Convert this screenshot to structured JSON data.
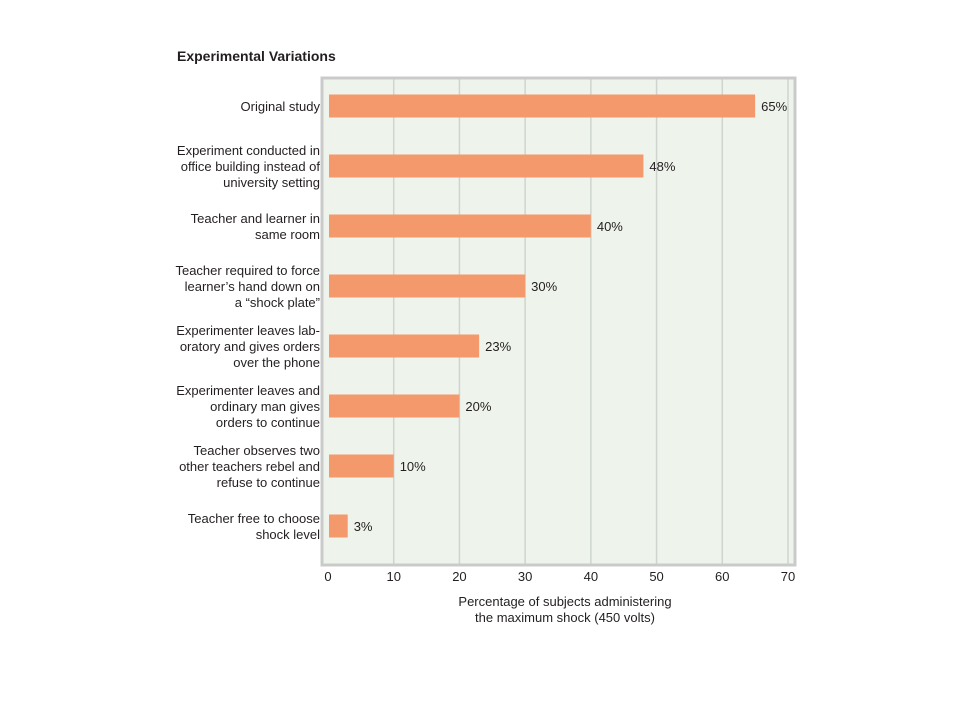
{
  "chart_data": {
    "type": "bar",
    "orientation": "horizontal",
    "title": "Experimental Variations",
    "xlabel": [
      "Percentage of subjects administering",
      "the maximum shock (450 volts)"
    ],
    "ylabel": "",
    "xlim": [
      0,
      70
    ],
    "xticks": [
      0,
      10,
      20,
      30,
      40,
      50,
      60,
      70
    ],
    "grid": true,
    "categories": [
      [
        "Original study"
      ],
      [
        "Experiment conducted in",
        "office building instead of",
        "university setting"
      ],
      [
        "Teacher and learner in",
        "same room"
      ],
      [
        "Teacher required to force",
        "learner’s hand down on",
        "a “shock plate”"
      ],
      [
        "Experimenter leaves lab-",
        "oratory and gives orders",
        "over the phone"
      ],
      [
        "Experimenter leaves and",
        "ordinary man gives",
        "orders to continue"
      ],
      [
        "Teacher observes two",
        "other teachers rebel and",
        "refuse to continue"
      ],
      [
        "Teacher free to choose",
        "shock level"
      ]
    ],
    "values": [
      65,
      48,
      40,
      30,
      23,
      20,
      10,
      3
    ],
    "value_labels": [
      "65%",
      "48%",
      "40%",
      "30%",
      "23%",
      "20%",
      "10%",
      "3%"
    ]
  },
  "colors": {
    "bar": "#f4996c",
    "plot_background": "#eef4ec",
    "frame": "#c9cbca",
    "grid": "#cfd4cf"
  }
}
